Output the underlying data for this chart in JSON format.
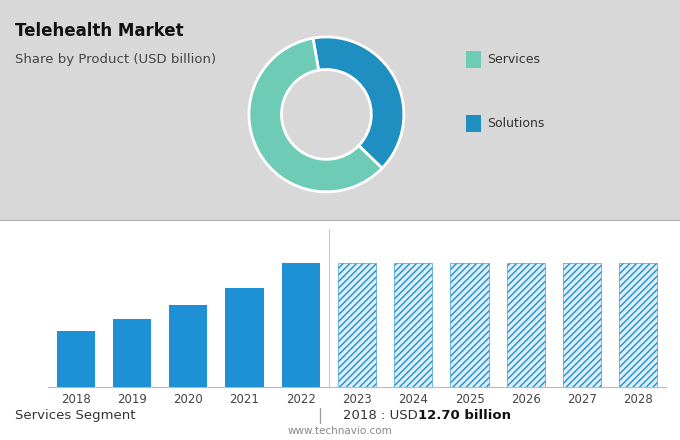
{
  "title": "Telehealth Market",
  "subtitle": "Share by Product (USD billion)",
  "top_bg_color": "#d8d8d8",
  "bottom_bg_color": "#ffffff",
  "donut_values": [
    40,
    60
  ],
  "donut_colors": [
    "#1e8fc0",
    "#6ecbb5"
  ],
  "donut_labels": [
    "Solutions",
    "Services"
  ],
  "bar_years": [
    "2018",
    "2019",
    "2020",
    "2021",
    "2022",
    "2023",
    "2024",
    "2025",
    "2026",
    "2027",
    "2028"
  ],
  "bar_values": [
    12.7,
    15.5,
    18.5,
    22.5,
    28.0,
    28.0,
    28.0,
    28.0,
    28.0,
    28.0,
    28.0
  ],
  "bar_solid_color": "#1e90d6",
  "solid_count": 5,
  "grid_color": "#cccccc",
  "axis_line_color": "#bbbbbb",
  "footer_left": "Services Segment",
  "footer_sep": "|",
  "footer_mid": "2018 : USD ",
  "footer_bold": "12.70 billion",
  "website": "www.technavio.com",
  "legend_services_color": "#6ecbb5",
  "legend_solutions_color": "#1e8fc0"
}
